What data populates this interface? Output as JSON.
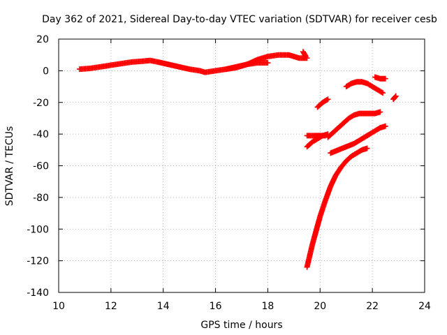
{
  "chart_data": {
    "type": "scatter",
    "title": "Day 362 of 2021, Sidereal Day-to-day VTEC variation (SDTVAR) for receiver cesb",
    "xlabel": "GPS time / hours",
    "ylabel": "SDTVAR / TECUs",
    "xlim": [
      10,
      24
    ],
    "ylim": [
      -140,
      20
    ],
    "x_ticks": [
      10,
      12,
      14,
      16,
      18,
      20,
      22,
      24
    ],
    "y_ticks": [
      -140,
      -120,
      -100,
      -80,
      -60,
      -40,
      -20,
      0,
      20
    ],
    "x_tick_labels": [
      "10",
      "12",
      "14",
      "16",
      "18",
      "20",
      "22",
      "24"
    ],
    "y_tick_labels": [
      "-140",
      "-120",
      "-100",
      "-80",
      "-60",
      "-40",
      "-20",
      "0",
      "20"
    ],
    "grid": true,
    "marker": "+",
    "color": "#ff0000",
    "series": [
      {
        "x": [
          10.8,
          11.2,
          11.6,
          12.0,
          12.4,
          12.8,
          13.2,
          13.5,
          13.8,
          14.2,
          14.6,
          15.0,
          15.4,
          15.6,
          16.0,
          16.4,
          16.8,
          17.2,
          17.6,
          18.0,
          18.4,
          18.8,
          19.2,
          19.5
        ],
        "y": [
          1,
          1.5,
          2.5,
          3.5,
          4.5,
          5.5,
          6,
          6.5,
          5.5,
          4,
          2.5,
          1,
          0,
          -1,
          0,
          1,
          2,
          4,
          7,
          9,
          10,
          10,
          8,
          8
        ]
      },
      {
        "x": [
          16.4,
          16.8,
          17.2,
          17.6,
          18.0
        ],
        "y": [
          1,
          2.5,
          4,
          5,
          5
        ]
      },
      {
        "x": [
          19.35,
          19.42,
          19.45
        ],
        "y": [
          12,
          10,
          9
        ]
      },
      {
        "x": [
          19.5,
          19.7,
          19.9,
          20.0,
          20.2,
          20.4,
          20.6,
          20.8,
          21.0,
          21.2,
          21.4,
          21.6,
          21.8
        ],
        "y": [
          -124,
          -110,
          -98,
          -92,
          -82,
          -73,
          -66,
          -61,
          -57,
          -54,
          -52,
          -50,
          -49
        ]
      },
      {
        "x": [
          19.5,
          19.7,
          19.9,
          20.1,
          20.3
        ],
        "y": [
          -48,
          -45,
          -43,
          -41,
          -40
        ]
      },
      {
        "x": [
          19.5,
          19.8,
          20.0,
          20.2
        ],
        "y": [
          -41,
          -41,
          -41,
          -41
        ]
      },
      {
        "x": [
          20.3,
          20.5,
          20.7,
          20.9,
          21.1,
          21.3,
          21.5,
          21.7,
          21.9,
          22.1,
          22.3
        ],
        "y": [
          -42,
          -39,
          -36,
          -33,
          -30,
          -28,
          -27,
          -27,
          -27,
          -27,
          -26
        ]
      },
      {
        "x": [
          20.4,
          20.7,
          21.0,
          21.3,
          21.6,
          21.9,
          22.1,
          22.3,
          22.5
        ],
        "y": [
          -52,
          -50,
          -48,
          -46,
          -43,
          -40,
          -38,
          -36,
          -35
        ]
      },
      {
        "x": [
          19.9,
          20.1,
          20.3
        ],
        "y": [
          -23,
          -20,
          -18
        ]
      },
      {
        "x": [
          21.0,
          21.2,
          21.4,
          21.6,
          21.8,
          22.0,
          22.2,
          22.4
        ],
        "y": [
          -10,
          -8,
          -7,
          -7,
          -8,
          -10,
          -12,
          -14
        ]
      },
      {
        "x": [
          22.1,
          22.3,
          22.5
        ],
        "y": [
          -4,
          -5,
          -5
        ]
      },
      {
        "x": [
          22.8,
          22.85,
          22.9
        ],
        "y": [
          -18,
          -17,
          -16
        ]
      }
    ]
  }
}
